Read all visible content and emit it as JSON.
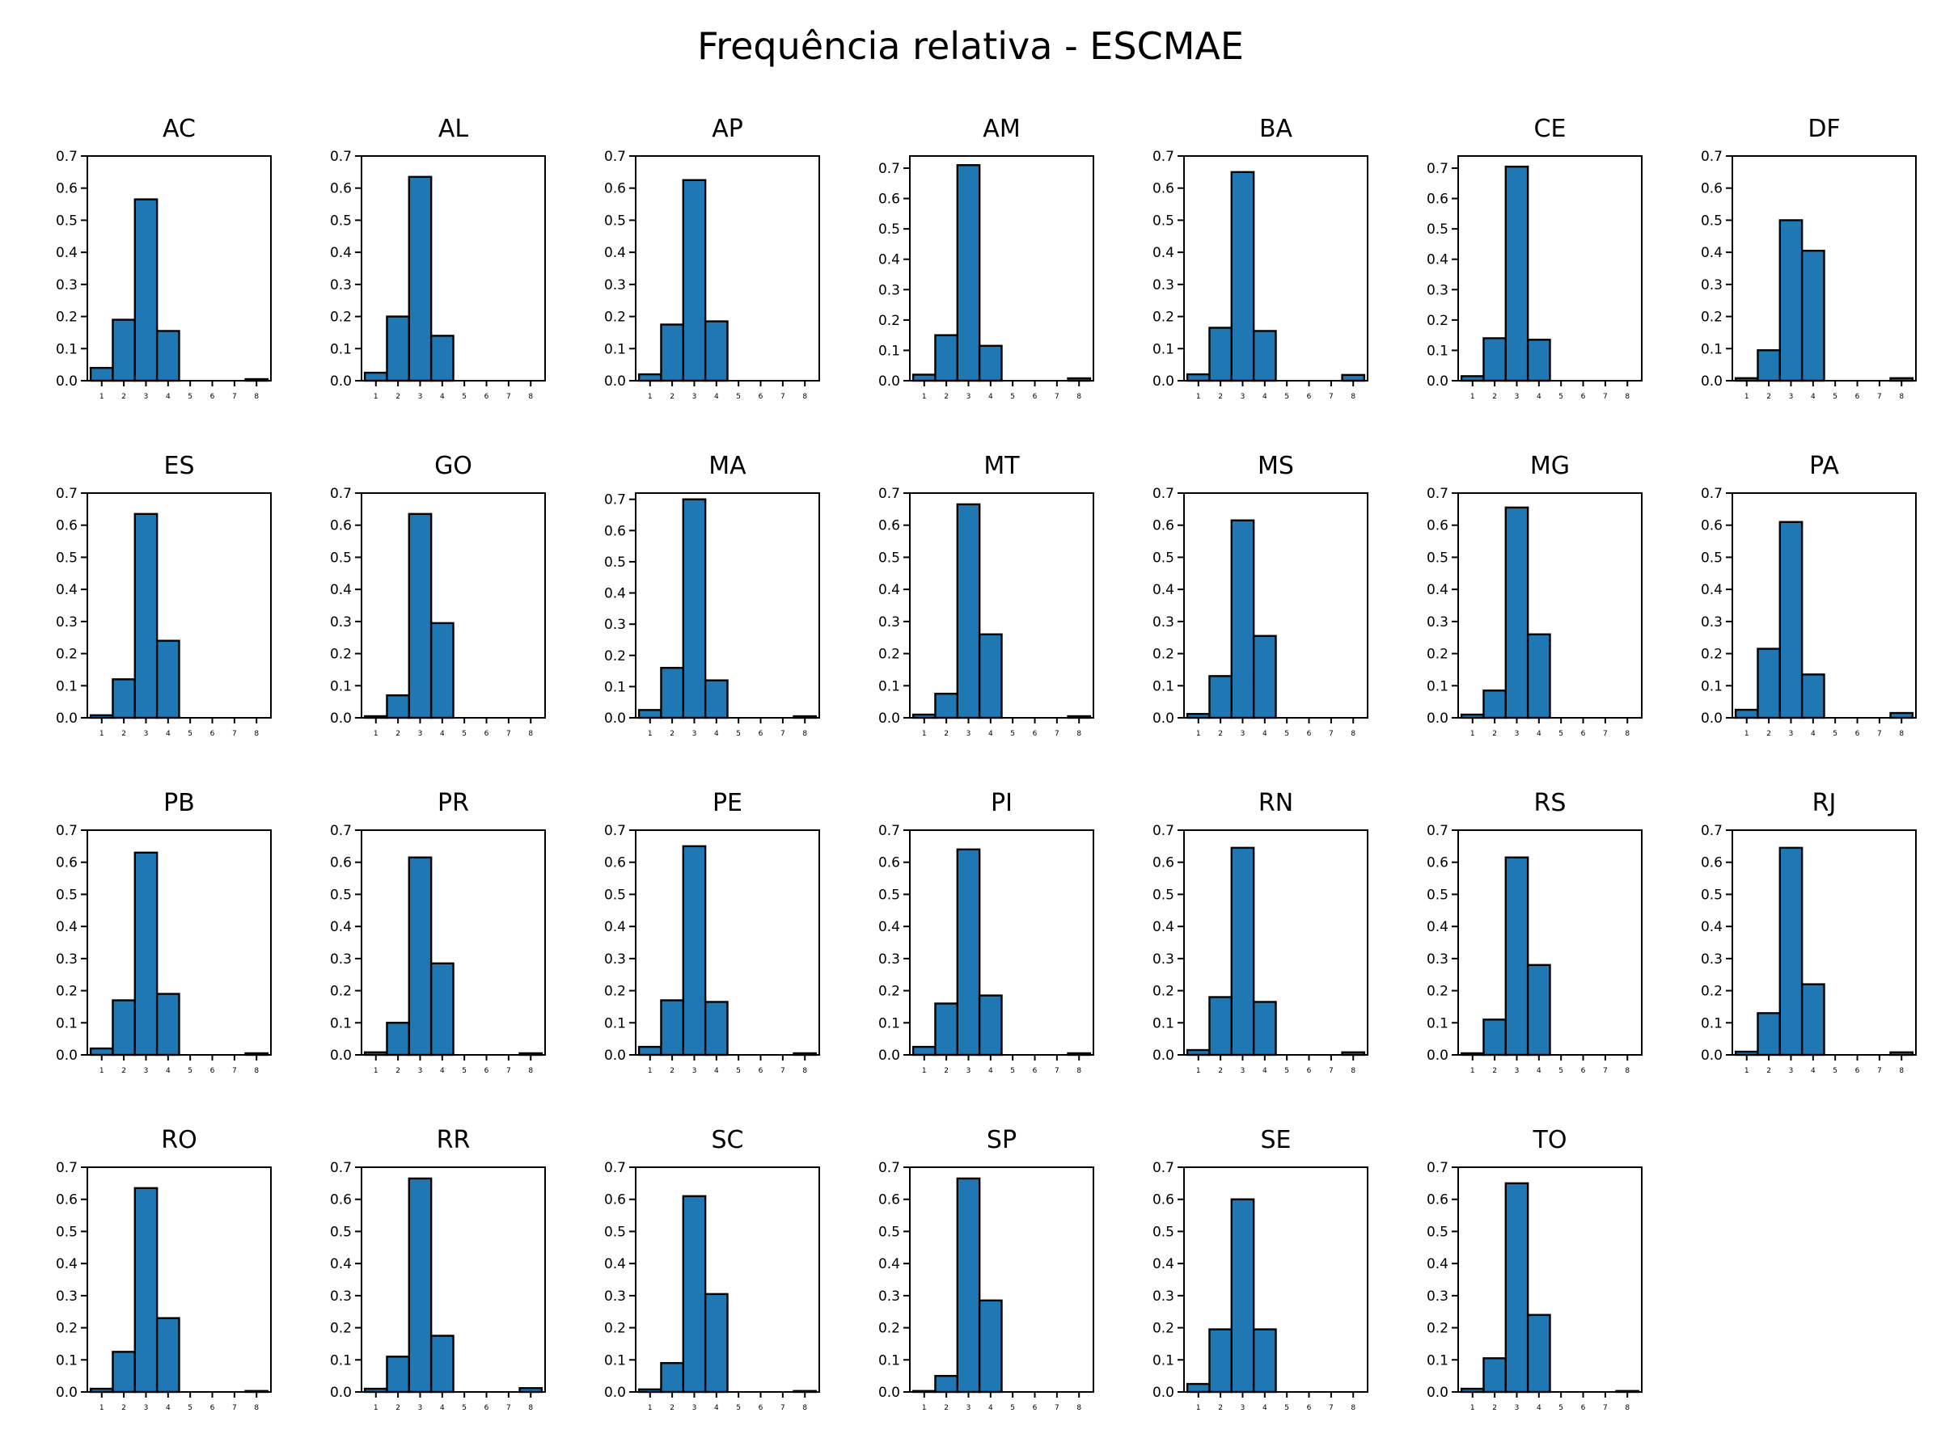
{
  "title": "Frequência relativa - ESCMAE",
  "colors": {
    "bar": "#1f77b4",
    "edge": "#000000"
  },
  "chart_data": {
    "type": "bar",
    "title": "Frequência relativa - ESCMAE",
    "categories": [
      1,
      2,
      3,
      4,
      5,
      6,
      7,
      8
    ],
    "grid": false,
    "subplots": [
      {
        "title": "AC",
        "ylim": [
          0,
          0.7
        ],
        "yticks": [
          "0.0",
          "0.1",
          "0.2",
          "0.3",
          "0.4",
          "0.5",
          "0.6",
          "0.7"
        ],
        "values": [
          0.04,
          0.19,
          0.565,
          0.155,
          0,
          0,
          0,
          0.005
        ]
      },
      {
        "title": "AL",
        "ylim": [
          0,
          0.7
        ],
        "yticks": [
          "0.0",
          "0.1",
          "0.2",
          "0.3",
          "0.4",
          "0.5",
          "0.6",
          "0.7"
        ],
        "values": [
          0.025,
          0.2,
          0.635,
          0.14,
          0,
          0,
          0,
          0
        ]
      },
      {
        "title": "AP",
        "ylim": [
          0,
          0.7
        ],
        "yticks": [
          "0.0",
          "0.1",
          "0.2",
          "0.3",
          "0.4",
          "0.5",
          "0.6",
          "0.7"
        ],
        "values": [
          0.02,
          0.175,
          0.625,
          0.185,
          0,
          0,
          0,
          0
        ]
      },
      {
        "title": "AM",
        "ylim": [
          0,
          0.74
        ],
        "yticks": [
          "0.0",
          "0.1",
          "0.2",
          "0.3",
          "0.4",
          "0.5",
          "0.6",
          "0.7"
        ],
        "values": [
          0.02,
          0.15,
          0.71,
          0.115,
          0,
          0,
          0,
          0.008
        ]
      },
      {
        "title": "BA",
        "ylim": [
          0,
          0.7
        ],
        "yticks": [
          "0.0",
          "0.1",
          "0.2",
          "0.3",
          "0.4",
          "0.5",
          "0.6",
          "0.7"
        ],
        "values": [
          0.02,
          0.165,
          0.65,
          0.155,
          0,
          0,
          0,
          0.018
        ]
      },
      {
        "title": "CE",
        "ylim": [
          0,
          0.74
        ],
        "yticks": [
          "0.0",
          "0.1",
          "0.2",
          "0.3",
          "0.4",
          "0.5",
          "0.6",
          "0.7"
        ],
        "values": [
          0.015,
          0.14,
          0.705,
          0.135,
          0,
          0,
          0,
          0
        ]
      },
      {
        "title": "DF",
        "ylim": [
          0,
          0.7
        ],
        "yticks": [
          "0.0",
          "0.1",
          "0.2",
          "0.3",
          "0.4",
          "0.5",
          "0.6",
          "0.7"
        ],
        "values": [
          0.008,
          0.095,
          0.5,
          0.405,
          0,
          0,
          0,
          0.008
        ]
      },
      {
        "title": "ES",
        "ylim": [
          0,
          0.7
        ],
        "yticks": [
          "0.0",
          "0.1",
          "0.2",
          "0.3",
          "0.4",
          "0.5",
          "0.6",
          "0.7"
        ],
        "values": [
          0.008,
          0.12,
          0.635,
          0.24,
          0,
          0,
          0,
          0
        ]
      },
      {
        "title": "GO",
        "ylim": [
          0,
          0.7
        ],
        "yticks": [
          "0.0",
          "0.1",
          "0.2",
          "0.3",
          "0.4",
          "0.5",
          "0.6",
          "0.7"
        ],
        "values": [
          0.005,
          0.07,
          0.635,
          0.295,
          0,
          0,
          0,
          0
        ]
      },
      {
        "title": "MA",
        "ylim": [
          0,
          0.72
        ],
        "yticks": [
          "0.0",
          "0.1",
          "0.2",
          "0.3",
          "0.4",
          "0.5",
          "0.6",
          "0.7"
        ],
        "values": [
          0.025,
          0.16,
          0.7,
          0.12,
          0,
          0,
          0,
          0.005
        ]
      },
      {
        "title": "MT",
        "ylim": [
          0,
          0.7
        ],
        "yticks": [
          "0.0",
          "0.1",
          "0.2",
          "0.3",
          "0.4",
          "0.5",
          "0.6",
          "0.7"
        ],
        "values": [
          0.01,
          0.075,
          0.665,
          0.26,
          0,
          0,
          0,
          0.005
        ]
      },
      {
        "title": "MS",
        "ylim": [
          0,
          0.7
        ],
        "yticks": [
          "0.0",
          "0.1",
          "0.2",
          "0.3",
          "0.4",
          "0.5",
          "0.6",
          "0.7"
        ],
        "values": [
          0.012,
          0.13,
          0.615,
          0.255,
          0,
          0,
          0,
          0
        ]
      },
      {
        "title": "MG",
        "ylim": [
          0,
          0.7
        ],
        "yticks": [
          "0.0",
          "0.1",
          "0.2",
          "0.3",
          "0.4",
          "0.5",
          "0.6",
          "0.7"
        ],
        "values": [
          0.01,
          0.085,
          0.655,
          0.26,
          0,
          0,
          0,
          0
        ]
      },
      {
        "title": "PA",
        "ylim": [
          0,
          0.7
        ],
        "yticks": [
          "0.0",
          "0.1",
          "0.2",
          "0.3",
          "0.4",
          "0.5",
          "0.6",
          "0.7"
        ],
        "values": [
          0.025,
          0.215,
          0.61,
          0.135,
          0,
          0,
          0,
          0.015
        ]
      },
      {
        "title": "PB",
        "ylim": [
          0,
          0.7
        ],
        "yticks": [
          "0.0",
          "0.1",
          "0.2",
          "0.3",
          "0.4",
          "0.5",
          "0.6",
          "0.7"
        ],
        "values": [
          0.02,
          0.17,
          0.63,
          0.19,
          0,
          0,
          0,
          0.005
        ]
      },
      {
        "title": "PR",
        "ylim": [
          0,
          0.7
        ],
        "yticks": [
          "0.0",
          "0.1",
          "0.2",
          "0.3",
          "0.4",
          "0.5",
          "0.6",
          "0.7"
        ],
        "values": [
          0.008,
          0.1,
          0.615,
          0.285,
          0,
          0,
          0,
          0.005
        ]
      },
      {
        "title": "PE",
        "ylim": [
          0,
          0.7
        ],
        "yticks": [
          "0.0",
          "0.1",
          "0.2",
          "0.3",
          "0.4",
          "0.5",
          "0.6",
          "0.7"
        ],
        "values": [
          0.025,
          0.17,
          0.65,
          0.165,
          0,
          0,
          0,
          0.005
        ]
      },
      {
        "title": "PI",
        "ylim": [
          0,
          0.7
        ],
        "yticks": [
          "0.0",
          "0.1",
          "0.2",
          "0.3",
          "0.4",
          "0.5",
          "0.6",
          "0.7"
        ],
        "values": [
          0.025,
          0.16,
          0.64,
          0.185,
          0,
          0,
          0,
          0.005
        ]
      },
      {
        "title": "RN",
        "ylim": [
          0,
          0.7
        ],
        "yticks": [
          "0.0",
          "0.1",
          "0.2",
          "0.3",
          "0.4",
          "0.5",
          "0.6",
          "0.7"
        ],
        "values": [
          0.015,
          0.18,
          0.645,
          0.165,
          0,
          0,
          0,
          0.008
        ]
      },
      {
        "title": "RS",
        "ylim": [
          0,
          0.7
        ],
        "yticks": [
          "0.0",
          "0.1",
          "0.2",
          "0.3",
          "0.4",
          "0.5",
          "0.6",
          "0.7"
        ],
        "values": [
          0.005,
          0.11,
          0.615,
          0.28,
          0,
          0,
          0,
          0
        ]
      },
      {
        "title": "RJ",
        "ylim": [
          0,
          0.7
        ],
        "yticks": [
          "0.0",
          "0.1",
          "0.2",
          "0.3",
          "0.4",
          "0.5",
          "0.6",
          "0.7"
        ],
        "values": [
          0.01,
          0.13,
          0.645,
          0.22,
          0,
          0,
          0,
          0.008
        ]
      },
      {
        "title": "RO",
        "ylim": [
          0,
          0.7
        ],
        "yticks": [
          "0.0",
          "0.1",
          "0.2",
          "0.3",
          "0.4",
          "0.5",
          "0.6",
          "0.7"
        ],
        "values": [
          0.01,
          0.125,
          0.635,
          0.23,
          0,
          0,
          0,
          0.003
        ]
      },
      {
        "title": "RR",
        "ylim": [
          0,
          0.7
        ],
        "yticks": [
          "0.0",
          "0.1",
          "0.2",
          "0.3",
          "0.4",
          "0.5",
          "0.6",
          "0.7"
        ],
        "values": [
          0.01,
          0.11,
          0.665,
          0.175,
          0,
          0,
          0,
          0.012
        ]
      },
      {
        "title": "SC",
        "ylim": [
          0,
          0.7
        ],
        "yticks": [
          "0.0",
          "0.1",
          "0.2",
          "0.3",
          "0.4",
          "0.5",
          "0.6",
          "0.7"
        ],
        "values": [
          0.008,
          0.09,
          0.61,
          0.305,
          0,
          0,
          0,
          0.003
        ]
      },
      {
        "title": "SP",
        "ylim": [
          0,
          0.7
        ],
        "yticks": [
          "0.0",
          "0.1",
          "0.2",
          "0.3",
          "0.4",
          "0.5",
          "0.6",
          "0.7"
        ],
        "values": [
          0.003,
          0.05,
          0.665,
          0.285,
          0,
          0,
          0,
          0
        ]
      },
      {
        "title": "SE",
        "ylim": [
          0,
          0.7
        ],
        "yticks": [
          "0.0",
          "0.1",
          "0.2",
          "0.3",
          "0.4",
          "0.5",
          "0.6",
          "0.7"
        ],
        "values": [
          0.025,
          0.195,
          0.6,
          0.195,
          0,
          0,
          0,
          0
        ]
      },
      {
        "title": "TO",
        "ylim": [
          0,
          0.7
        ],
        "yticks": [
          "0.0",
          "0.1",
          "0.2",
          "0.3",
          "0.4",
          "0.5",
          "0.6",
          "0.7"
        ],
        "values": [
          0.01,
          0.105,
          0.65,
          0.24,
          0,
          0,
          0,
          0.003
        ]
      }
    ]
  }
}
